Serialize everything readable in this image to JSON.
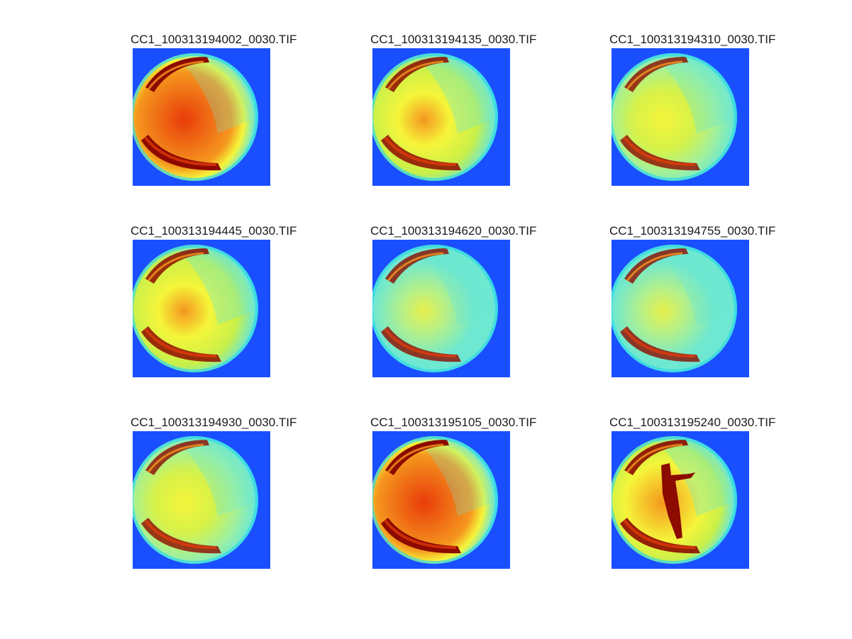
{
  "figure": {
    "panels": [
      {
        "title": "CC1_100313194002_0030.TIF",
        "variant": "hot"
      },
      {
        "title": "CC1_100313194135_0030.TIF",
        "variant": "warm"
      },
      {
        "title": "CC1_100313194310_0030.TIF",
        "variant": "mild"
      },
      {
        "title": "CC1_100313194445_0030.TIF",
        "variant": "warm"
      },
      {
        "title": "CC1_100313194620_0030.TIF",
        "variant": "cool"
      },
      {
        "title": "CC1_100313194755_0030.TIF",
        "variant": "cool"
      },
      {
        "title": "CC1_100313194930_0030.TIF",
        "variant": "mild"
      },
      {
        "title": "CC1_100313195105_0030.TIF",
        "variant": "hot"
      },
      {
        "title": "CC1_100313195240_0030.TIF",
        "variant": "streak"
      }
    ],
    "colors": {
      "background": "#1a4fff",
      "rim": "#2fd8e8",
      "cyan": "#6ee8d0",
      "yellow": "#f5f53a",
      "orange": "#f5961e",
      "red": "#e83c0a",
      "darkred": "#8c0a00"
    }
  }
}
